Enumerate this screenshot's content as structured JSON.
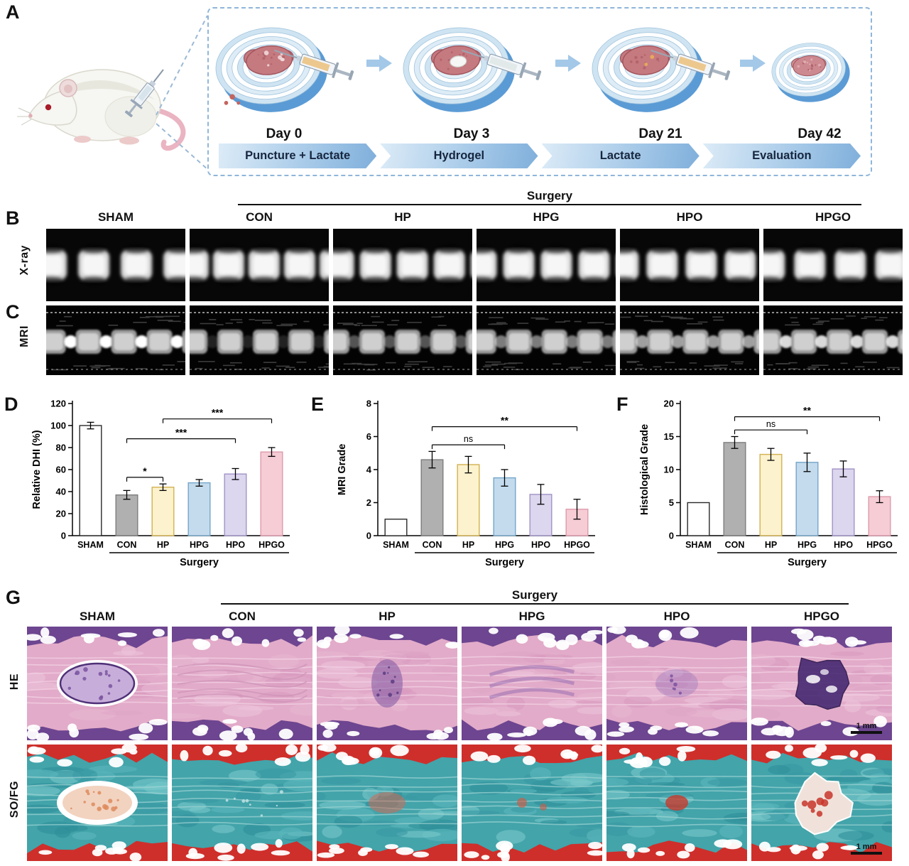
{
  "panelA": {
    "label": "A",
    "steps": [
      {
        "day": "Day 0",
        "banner": "Puncture + Lactate"
      },
      {
        "day": "Day 3",
        "banner": "Hydrogel"
      },
      {
        "day": "Day 21",
        "banner": "Lactate"
      },
      {
        "day": "Day 42",
        "banner": "Evaluation"
      }
    ]
  },
  "groups": [
    "SHAM",
    "CON",
    "HP",
    "HPG",
    "HPO",
    "HPGO"
  ],
  "surgery_label": "Surgery",
  "panelB": {
    "label": "B",
    "row_label": "X-ray"
  },
  "panelC": {
    "label": "C",
    "row_label": "MRI"
  },
  "panelG": {
    "label": "G",
    "row_labels": [
      "HE",
      "SO/FG"
    ],
    "scale_bar": "1 mm"
  },
  "chart_data": [
    {
      "panel_label": "D",
      "type": "bar",
      "categories": [
        "SHAM",
        "CON",
        "HP",
        "HPG",
        "HPO",
        "HPGO"
      ],
      "values": [
        100,
        37,
        44,
        48,
        56,
        76
      ],
      "errors": [
        3,
        4,
        3,
        3,
        5,
        4
      ],
      "title": "",
      "xlabel": "",
      "ylabel": "Relative DHI (%)",
      "ylim": [
        0,
        120
      ],
      "ytick_step": 20,
      "group_axis_label": "Surgery",
      "group_span": [
        1,
        5
      ],
      "bar_colors": [
        "#ffffff",
        "#b0b0b0",
        "#fcf2cd",
        "#c3dbed",
        "#dcd6ee",
        "#f6ccd5"
      ],
      "bar_edge_colors": [
        "#2a2a2a",
        "#7d7d7d",
        "#d2b152",
        "#74a6c9",
        "#a193c6",
        "#dd9aab"
      ],
      "significance": [
        {
          "label": "*",
          "from": 1,
          "to": 2,
          "y": 53
        },
        {
          "label": "***",
          "from": 1,
          "to": 4,
          "y": 88
        },
        {
          "label": "***",
          "from": 2,
          "to": 5,
          "y": 106
        }
      ]
    },
    {
      "panel_label": "E",
      "type": "bar",
      "categories": [
        "SHAM",
        "CON",
        "HP",
        "HPG",
        "HPO",
        "HPGO"
      ],
      "values": [
        1,
        4.6,
        4.3,
        3.5,
        2.5,
        1.6
      ],
      "errors": [
        0,
        0.5,
        0.5,
        0.5,
        0.6,
        0.6
      ],
      "title": "",
      "xlabel": "",
      "ylabel": "MRI Grade",
      "ylim": [
        0,
        8
      ],
      "ytick_step": 2,
      "group_axis_label": "Surgery",
      "group_span": [
        1,
        5
      ],
      "bar_colors": [
        "#ffffff",
        "#b0b0b0",
        "#fcf2cd",
        "#c3dbed",
        "#dcd6ee",
        "#f6ccd5"
      ],
      "bar_edge_colors": [
        "#2a2a2a",
        "#7d7d7d",
        "#d2b152",
        "#74a6c9",
        "#a193c6",
        "#dd9aab"
      ],
      "significance": [
        {
          "label": "ns",
          "from": 1,
          "to": 3,
          "y": 5.5
        },
        {
          "label": "**",
          "from": 1,
          "to": 5,
          "y": 6.6
        }
      ]
    },
    {
      "panel_label": "F",
      "type": "bar",
      "categories": [
        "SHAM",
        "CON",
        "HP",
        "HPG",
        "HPO",
        "HPGO"
      ],
      "values": [
        5,
        14.1,
        12.3,
        11.1,
        10.1,
        5.9
      ],
      "errors": [
        0,
        0.9,
        0.9,
        1.4,
        1.2,
        0.9
      ],
      "title": "",
      "xlabel": "",
      "ylabel": "Histological Grade",
      "ylim": [
        0,
        20
      ],
      "ytick_step": 5,
      "group_axis_label": "Surgery",
      "group_span": [
        1,
        5
      ],
      "bar_colors": [
        "#ffffff",
        "#b0b0b0",
        "#fcf2cd",
        "#c3dbed",
        "#dcd6ee",
        "#f6ccd5"
      ],
      "bar_edge_colors": [
        "#2a2a2a",
        "#7d7d7d",
        "#d2b152",
        "#74a6c9",
        "#a193c6",
        "#dd9aab"
      ],
      "significance": [
        {
          "label": "ns",
          "from": 1,
          "to": 3,
          "y": 16
        },
        {
          "label": "**",
          "from": 1,
          "to": 5,
          "y": 18
        }
      ]
    }
  ]
}
